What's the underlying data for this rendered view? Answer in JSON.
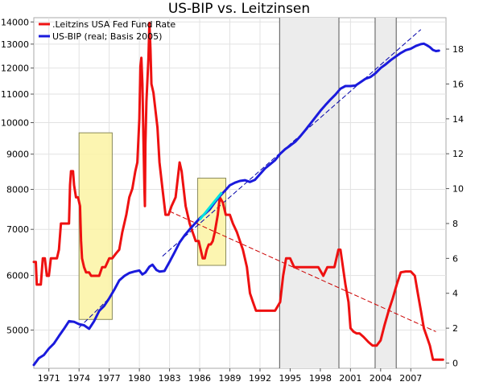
{
  "chart_data": {
    "type": "line",
    "title": "US-BIP vs. Leitzinsen",
    "xlabel": "",
    "ylabel": "",
    "y2label": "",
    "grid": true,
    "legend_position": "top-left",
    "xlim": [
      1969.5,
      2010.5
    ],
    "ylim_left": [
      4400,
      14200
    ],
    "ylim_right": [
      -0.3,
      19.8
    ],
    "left_axis_scale": "log",
    "x_ticks": [
      1971,
      1974,
      1977,
      1980,
      1983,
      1986,
      1989,
      1992,
      1995,
      1998,
      2001,
      2004,
      2007
    ],
    "x_tick_labels": [
      "1971",
      "1974",
      "1977",
      "1980",
      "1983",
      "1986",
      "1989",
      "1992",
      "1995",
      "1998",
      "2001",
      "2004",
      "2007"
    ],
    "y_left_ticks": [
      5000,
      6000,
      7000,
      8000,
      9000,
      10000,
      11000,
      12000,
      13000,
      14000
    ],
    "y_left_tick_labels": [
      "5000",
      "6000",
      "7000",
      "8000",
      "9000",
      "10000",
      "11000",
      "12000",
      "13000",
      "14000"
    ],
    "y_right_ticks": [
      0,
      2,
      4,
      6,
      8,
      10,
      12,
      14,
      16,
      18
    ],
    "y_right_tick_labels": [
      "0",
      "2",
      "4",
      "6",
      "8",
      "10",
      "12",
      "14",
      "16",
      "18"
    ],
    "colors": {
      "fed_rate": "#ee1111",
      "gdp": "#1a1adc",
      "recession_box_fill": "#fbf3a3",
      "recession_box_stroke": "#8a8a5a",
      "shaded_band_fill": "#ececec",
      "shaded_band_stroke": "#555555",
      "trend_red": "#cc0000",
      "trend_blue": "#0000aa",
      "highlight_cyan": "#00e0e0",
      "grid": "#e2e2e2"
    },
    "series": [
      {
        "name": ".Leitzins USA Fed Fund Rate",
        "axis": "right",
        "x": [
          1969.5,
          1969.7,
          1969.8,
          1970.2,
          1970.4,
          1970.6,
          1970.8,
          1971.0,
          1971.2,
          1971.5,
          1971.8,
          1972.0,
          1972.2,
          1972.5,
          1972.8,
          1973.0,
          1973.1,
          1973.2,
          1973.4,
          1973.5,
          1973.7,
          1973.9,
          1974.1,
          1974.2,
          1974.3,
          1974.5,
          1974.7,
          1975.0,
          1975.2,
          1975.5,
          1976.0,
          1976.3,
          1976.6,
          1977.0,
          1977.3,
          1977.7,
          1978.0,
          1978.3,
          1978.7,
          1979.0,
          1979.3,
          1979.6,
          1979.8,
          1979.9,
          1980.0,
          1980.1,
          1980.2,
          1980.3,
          1980.4,
          1980.5,
          1980.55,
          1980.6,
          1980.7,
          1980.9,
          1981.0,
          1981.1,
          1981.2,
          1981.4,
          1981.6,
          1981.8,
          1982.0,
          1982.3,
          1982.6,
          1982.9,
          1983.2,
          1983.6,
          1984.0,
          1984.2,
          1984.4,
          1984.6,
          1984.8,
          1985.0,
          1985.3,
          1985.6,
          1985.9,
          1986.1,
          1986.3,
          1986.5,
          1986.7,
          1986.9,
          1987.1,
          1987.3,
          1987.5,
          1987.8,
          1988.0,
          1988.3,
          1988.6,
          1989.0,
          1989.3,
          1989.7,
          1990.0,
          1990.3,
          1990.7,
          1991.0,
          1991.3,
          1991.6,
          1992.0,
          1992.5,
          1993.0,
          1993.5,
          1994.0,
          1994.3,
          1994.6,
          1995.0,
          1995.4,
          1995.8,
          1996.3,
          1996.8,
          1997.3,
          1997.8,
          1998.3,
          1998.7,
          1999.0,
          1999.4,
          1999.8,
          2000.0,
          2000.5,
          2000.8,
          2001.0,
          2001.3,
          2001.6,
          2001.9,
          2002.3,
          2002.8,
          2003.2,
          2003.6,
          2004.0,
          2004.4,
          2004.8,
          2005.2,
          2005.6,
          2006.0,
          2006.5,
          2007.0,
          2007.4,
          2007.7,
          2008.0,
          2008.3,
          2008.6,
          2008.9,
          2009.2,
          2009.6,
          2010.0,
          2010.2
        ],
        "y": [
          5.8,
          5.8,
          4.5,
          4.5,
          6.0,
          6.0,
          5.0,
          5.0,
          6.0,
          6.0,
          6.0,
          6.5,
          8.0,
          8.0,
          8.0,
          8.0,
          10.2,
          11.0,
          11.0,
          10.2,
          9.5,
          9.5,
          9.0,
          7.0,
          6.0,
          5.5,
          5.2,
          5.2,
          5.0,
          5.0,
          5.0,
          5.5,
          5.5,
          6.0,
          6.0,
          6.3,
          6.5,
          7.5,
          8.5,
          9.5,
          10.0,
          11.0,
          11.5,
          12.8,
          14.0,
          17.0,
          17.5,
          16.0,
          13.0,
          10.0,
          9.0,
          12.5,
          15.0,
          17.5,
          19.5,
          18.0,
          16.0,
          15.5,
          14.5,
          13.5,
          11.5,
          10.0,
          8.5,
          8.5,
          9.0,
          9.5,
          11.5,
          11.0,
          10.0,
          9.0,
          8.5,
          8.0,
          7.5,
          7.0,
          7.0,
          6.5,
          6.0,
          6.0,
          6.5,
          6.8,
          6.8,
          7.0,
          7.5,
          8.5,
          9.5,
          9.2,
          8.5,
          8.5,
          8.0,
          7.5,
          7.0,
          6.5,
          5.5,
          4.0,
          3.5,
          3.0,
          3.0,
          3.0,
          3.0,
          3.0,
          3.5,
          5.0,
          6.0,
          6.0,
          5.5,
          5.5,
          5.5,
          5.5,
          5.5,
          5.5,
          5.0,
          5.5,
          5.5,
          5.5,
          6.5,
          6.5,
          4.5,
          3.5,
          2.0,
          1.8,
          1.7,
          1.7,
          1.5,
          1.2,
          1.0,
          1.0,
          1.3,
          2.2,
          3.0,
          3.7,
          4.5,
          5.2,
          5.25,
          5.25,
          5.0,
          4.0,
          3.0,
          2.0,
          1.5,
          1.0,
          0.2,
          0.2,
          0.2,
          0.2
        ]
      },
      {
        "name": "US-BIP (real; Basis 2005)",
        "axis": "left",
        "x": [
          1969.5,
          1970.0,
          1970.5,
          1971.0,
          1971.5,
          1972.0,
          1972.5,
          1973.0,
          1973.5,
          1974.0,
          1974.5,
          1975.0,
          1975.5,
          1976.0,
          1976.5,
          1977.0,
          1977.5,
          1978.0,
          1978.5,
          1979.0,
          1979.5,
          1980.0,
          1980.3,
          1980.6,
          1981.0,
          1981.3,
          1981.7,
          1982.0,
          1982.5,
          1983.0,
          1983.5,
          1984.0,
          1984.5,
          1985.0,
          1985.5,
          1986.0,
          1986.5,
          1987.0,
          1987.5,
          1988.0,
          1988.5,
          1989.0,
          1989.5,
          1990.0,
          1990.5,
          1991.0,
          1991.5,
          1992.0,
          1992.5,
          1993.0,
          1993.5,
          1994.0,
          1994.5,
          1995.0,
          1995.5,
          1996.0,
          1996.5,
          1997.0,
          1997.5,
          1998.0,
          1998.5,
          1999.0,
          1999.5,
          2000.0,
          2000.5,
          2001.0,
          2001.5,
          2002.0,
          2002.5,
          2003.0,
          2003.5,
          2004.0,
          2004.5,
          2005.0,
          2005.5,
          2006.0,
          2006.5,
          2007.0,
          2007.5,
          2008.0,
          2008.3,
          2008.6,
          2008.9,
          2009.2,
          2009.5,
          2009.8
        ],
        "y": [
          4450,
          4550,
          4600,
          4700,
          4780,
          4900,
          5020,
          5150,
          5140,
          5100,
          5080,
          5020,
          5150,
          5330,
          5420,
          5560,
          5720,
          5900,
          5990,
          6050,
          6080,
          6100,
          6020,
          6060,
          6180,
          6220,
          6110,
          6080,
          6090,
          6280,
          6480,
          6700,
          6860,
          7000,
          7130,
          7260,
          7370,
          7480,
          7660,
          7820,
          7960,
          8110,
          8180,
          8230,
          8250,
          8200,
          8260,
          8420,
          8580,
          8700,
          8820,
          9010,
          9150,
          9260,
          9380,
          9550,
          9750,
          9960,
          10180,
          10400,
          10600,
          10800,
          10980,
          11200,
          11300,
          11300,
          11320,
          11450,
          11580,
          11650,
          11800,
          12000,
          12150,
          12320,
          12470,
          12620,
          12740,
          12800,
          12920,
          13000,
          13020,
          12950,
          12870,
          12750,
          12700,
          12720
        ]
      }
    ],
    "trend_lines": [
      {
        "axis": "right",
        "x": [
          1983.0,
          2009.5
        ],
        "y": [
          8.7,
          1.8
        ]
      },
      {
        "axis": "left",
        "x": [
          1982.3,
          2008.0
        ],
        "y": [
          6400,
          13650
        ]
      },
      {
        "axis": "left",
        "x": [
          1974.0,
          1977.0
        ],
        "y": [
          5040,
          5560
        ]
      }
    ],
    "highlight_segment": {
      "axis": "left",
      "x": [
        1986.0,
        1988.2
      ],
      "y": [
        7230,
        7920
      ]
    },
    "recession_boxes": [
      {
        "x": [
          1974.0,
          1977.3
        ],
        "y_right": [
          2.5,
          13.2
        ]
      },
      {
        "x": [
          1985.8,
          1988.6
        ],
        "y_right": [
          5.6,
          10.6
        ]
      }
    ],
    "shaded_bands": [
      {
        "x": [
          1993.95,
          1999.85
        ]
      },
      {
        "x": [
          2003.45,
          2005.55
        ]
      }
    ]
  }
}
